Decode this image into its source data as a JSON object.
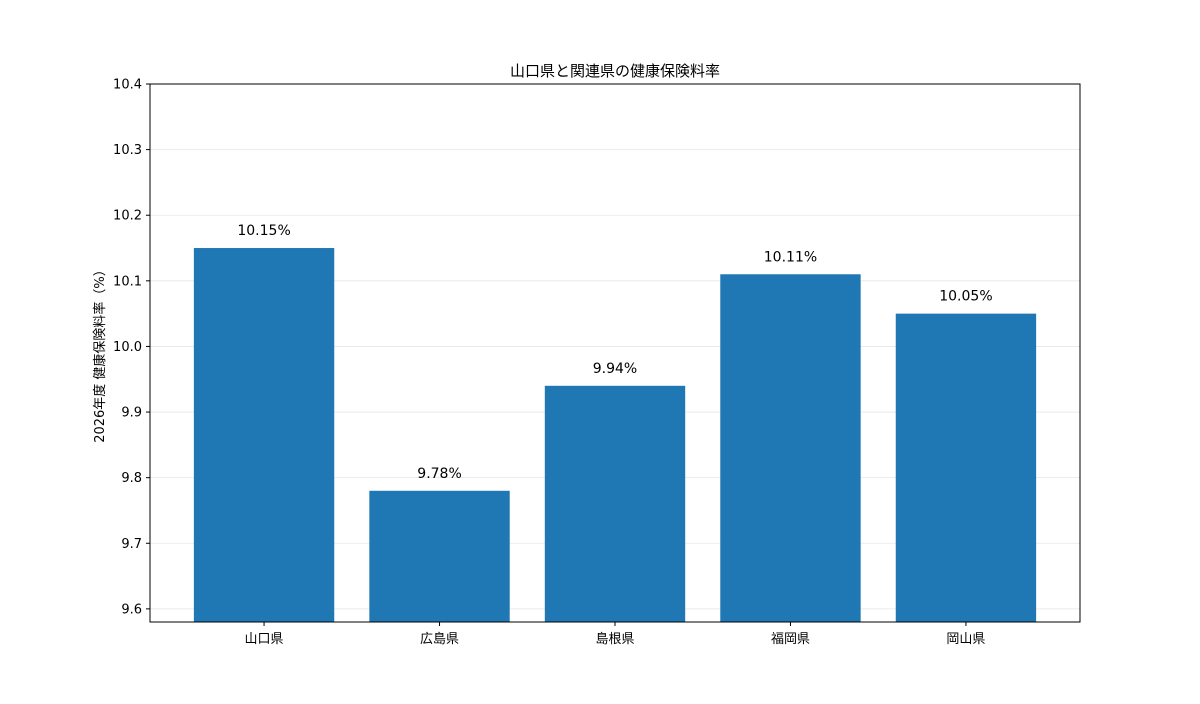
{
  "chart_data": {
    "type": "bar",
    "title": "山口県と関連県の健康保険料率",
    "xlabel": "",
    "ylabel": "2026年度 健康保険料率（%）",
    "categories": [
      "山口県",
      "広島県",
      "島根県",
      "福岡県",
      "岡山県"
    ],
    "values": [
      10.15,
      9.78,
      9.94,
      10.11,
      10.05
    ],
    "value_labels": [
      "10.15%",
      "9.78%",
      "9.94%",
      "10.11%",
      "10.05%"
    ],
    "ylim": [
      9.58,
      10.4
    ],
    "yticks": [
      9.6,
      9.7,
      9.8,
      9.9,
      10.0,
      10.1,
      10.2,
      10.3,
      10.4
    ],
    "ytick_labels": [
      "9.6",
      "9.7",
      "9.8",
      "9.9",
      "10.0",
      "10.1",
      "10.2",
      "10.3",
      "10.4"
    ],
    "grid": true,
    "legend": "none",
    "colors": {
      "bar": "#1f77b4",
      "grid": "#e6e6e6",
      "axis": "#000000"
    }
  }
}
